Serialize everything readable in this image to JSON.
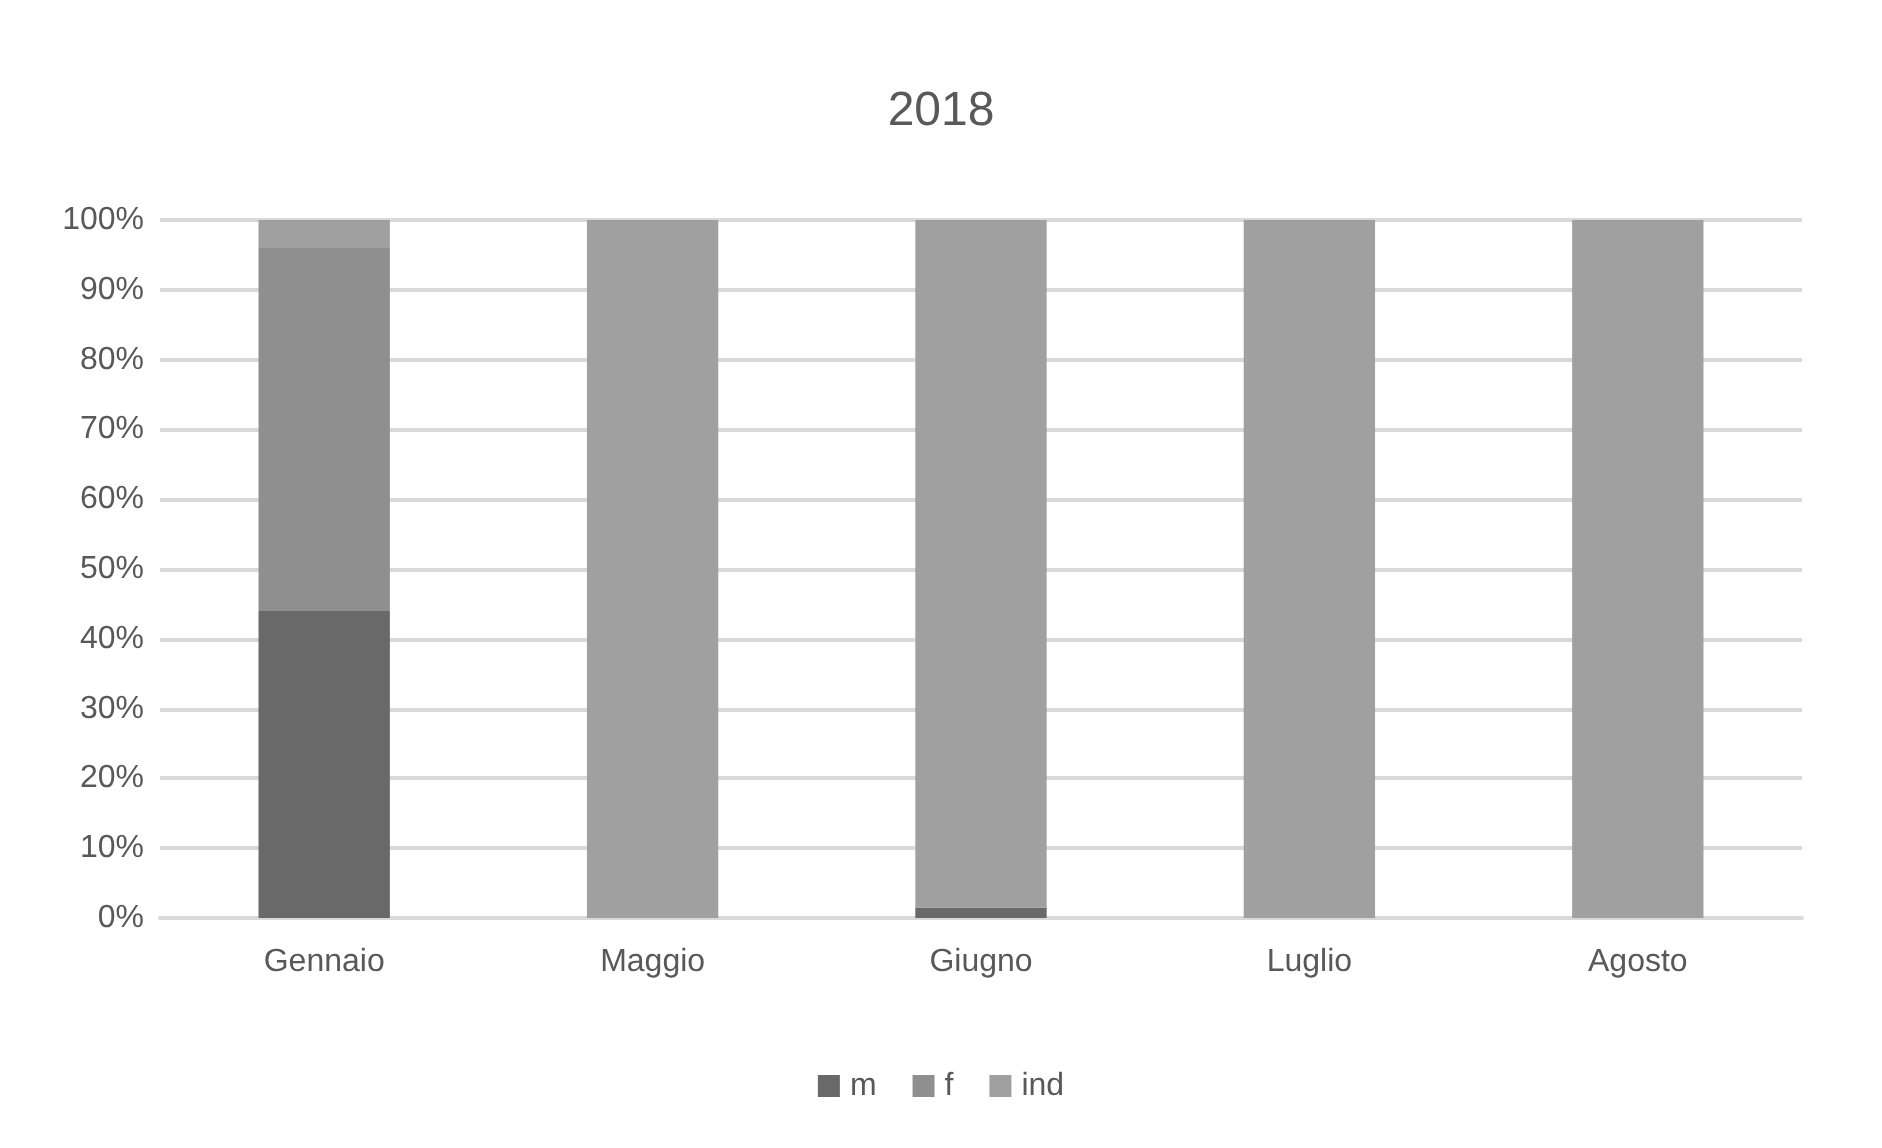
{
  "chart_data": {
    "type": "bar",
    "title": "2018",
    "categories": [
      "Gennaio",
      "Maggio",
      "Giugno",
      "Luglio",
      "Agosto"
    ],
    "stacked": true,
    "series": [
      {
        "name": "m",
        "color": "#696969",
        "values": [
          44,
          0,
          1.5,
          0,
          0
        ]
      },
      {
        "name": "f",
        "color": "#8f8f8f",
        "values": [
          52,
          0,
          0,
          0,
          0
        ]
      },
      {
        "name": "ind",
        "color": "#a0a0a0",
        "values": [
          4,
          100,
          98.5,
          100,
          100
        ]
      }
    ],
    "ylim": [
      0,
      100
    ],
    "yticks": [
      {
        "value": 0,
        "label": "0%"
      },
      {
        "value": 10,
        "label": "10%"
      },
      {
        "value": 20,
        "label": "20%"
      },
      {
        "value": 30,
        "label": "30%"
      },
      {
        "value": 40,
        "label": "40%"
      },
      {
        "value": 50,
        "label": "50%"
      },
      {
        "value": 60,
        "label": "60%"
      },
      {
        "value": 70,
        "label": "70%"
      },
      {
        "value": 80,
        "label": "80%"
      },
      {
        "value": 90,
        "label": "90%"
      },
      {
        "value": 100,
        "label": "100%"
      }
    ],
    "grid": "y",
    "legend": "bottom"
  }
}
